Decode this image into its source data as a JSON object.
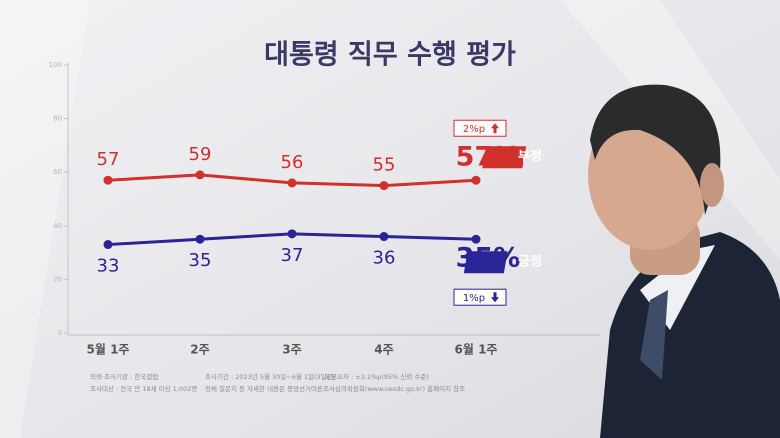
{
  "chart_data": {
    "type": "line",
    "title": "대통령 직무 수행 평가",
    "categories": [
      "5월 1주",
      "2주",
      "3주",
      "4주",
      "6월 1주"
    ],
    "series": [
      {
        "name": "부정",
        "color": "#d0312d",
        "values": [
          57,
          59,
          56,
          55,
          57
        ],
        "value_labels": [
          "57",
          "59",
          "56",
          "55",
          "57%"
        ],
        "label_side": "above"
      },
      {
        "name": "긍정",
        "color": "#2a2496",
        "values": [
          33,
          35,
          37,
          36,
          35
        ],
        "value_labels": [
          "33",
          "35",
          "37",
          "36",
          "35%"
        ],
        "label_side": "below"
      }
    ],
    "ylim": [
      0,
      100
    ],
    "yticks": [
      0,
      20,
      40,
      60,
      80,
      100
    ],
    "grid": false,
    "annotations": [
      {
        "text": "2%p",
        "series": 0,
        "direction": "up"
      },
      {
        "text": "1%p",
        "series": 1,
        "direction": "down"
      }
    ],
    "footnotes": [
      "의뢰·조사기관 : 한국갤럽",
      "조사기간 : 2023년 5월 30일~6월 1일(3일간)",
      "표본오차 : ±3.1%p(95% 신뢰 수준)",
      "조사대상 : 전국 만 18세 이상 1,002명",
      "전체 질문지 등 자세한 내용은 중앙선거여론조사심의위원회(www.nesdc.go.kr) 홈페이지 참조"
    ]
  }
}
